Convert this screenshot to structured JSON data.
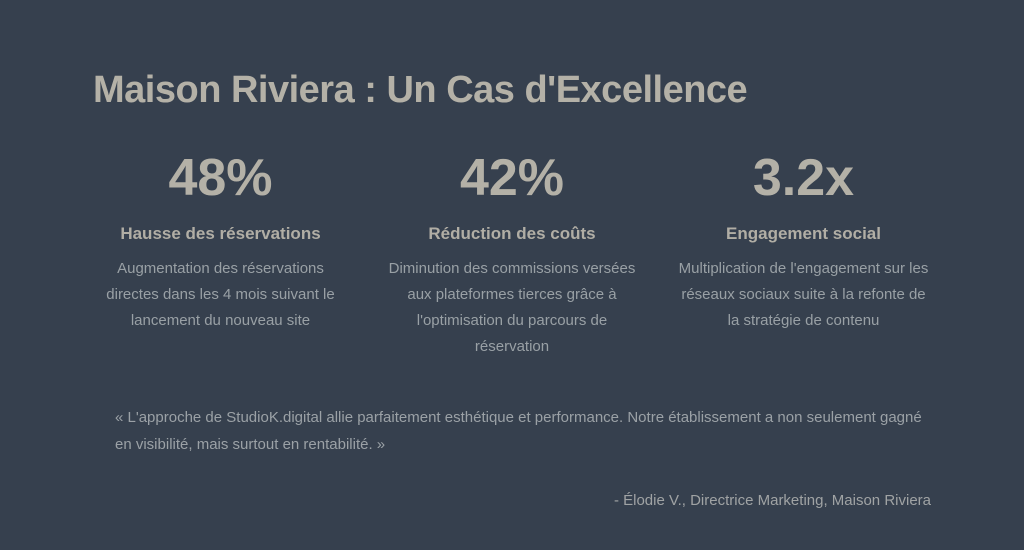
{
  "slide": {
    "title": "Maison Riviera : Un Cas d'Excellence",
    "stats": [
      {
        "value": "48%",
        "label": "Hausse des réservations",
        "description": "Augmentation des réservations directes dans les 4 mois suivant le lancement du nouveau site"
      },
      {
        "value": "42%",
        "label": "Réduction des coûts",
        "description": "Diminution des commissions versées aux plateformes tierces grâce à l'optimisation du parcours de réservation"
      },
      {
        "value": "3.2x",
        "label": "Engagement social",
        "description": "Multiplication de l'engagement sur les réseaux sociaux suite à la refonte de la stratégie de contenu"
      }
    ],
    "quote": "« L'approche de StudioK.digital allie parfaitement esthétique et performance. Notre établissement a non seulement gagné en visibilité, mais surtout en rentabilité. »",
    "attribution": "- Élodie V., Directrice Marketing, Maison Riviera",
    "colors": {
      "background": "#36404E",
      "heading": "#B4B1A7",
      "body_text": "#99A0A5"
    }
  }
}
